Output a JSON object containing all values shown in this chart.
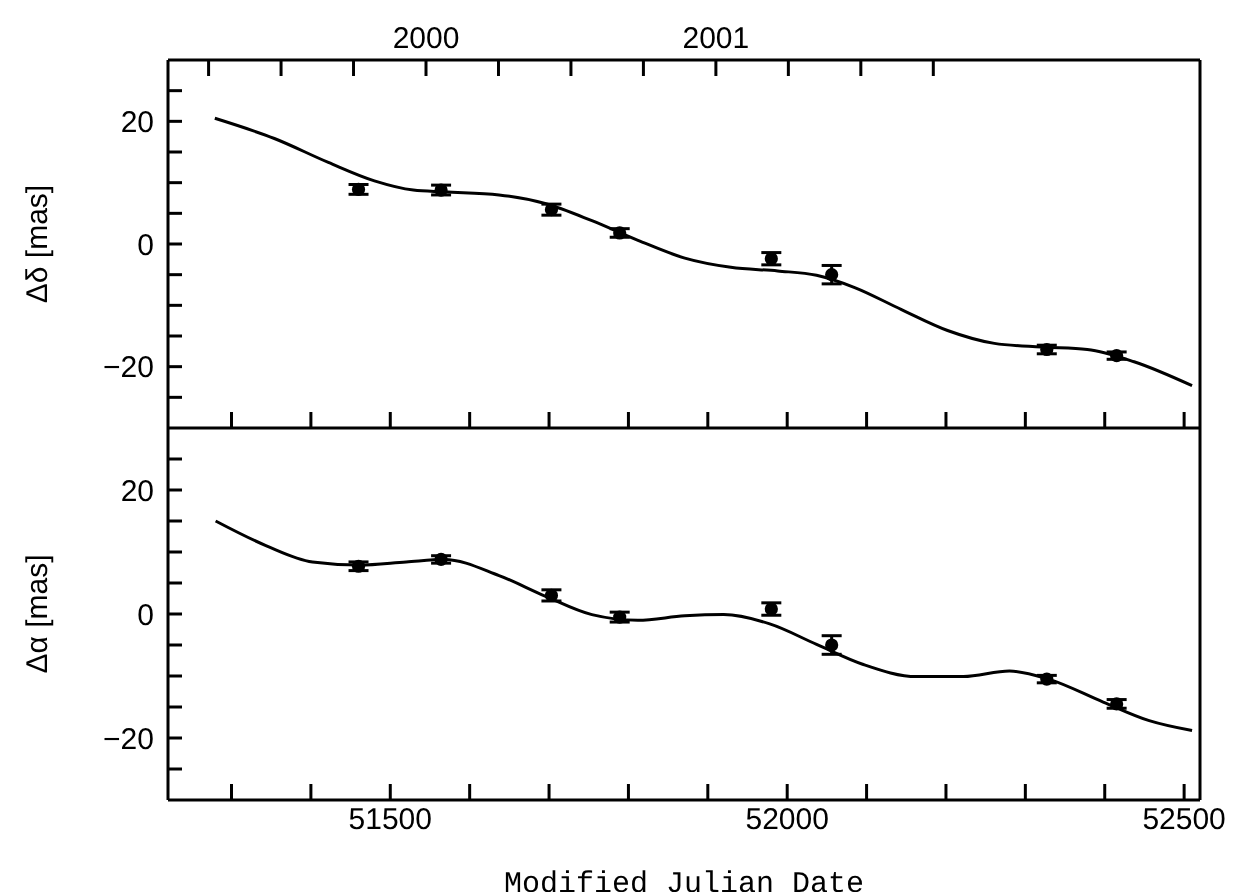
{
  "chart_data": [
    {
      "type": "scatter",
      "ylabel": "Δδ [mas]",
      "xlim": [
        51220,
        52520
      ],
      "ylim": [
        -30,
        30
      ],
      "tick_labels": "y",
      "xticks": [
        {
          "value": 51300,
          "label": null
        },
        {
          "value": 51400,
          "label": null
        },
        {
          "value": 51500,
          "label": null
        },
        {
          "value": 51600,
          "label": null
        },
        {
          "value": 51700,
          "label": null
        },
        {
          "value": 51800,
          "label": null
        },
        {
          "value": 51900,
          "label": null
        },
        {
          "value": 52000,
          "label": null
        },
        {
          "value": 52100,
          "label": null
        },
        {
          "value": 52200,
          "label": null
        },
        {
          "value": 52300,
          "label": null
        },
        {
          "value": 52400,
          "label": null
        },
        {
          "value": 52500,
          "label": null
        }
      ],
      "yticks": [
        {
          "value": -25,
          "label": null
        },
        -20,
        {
          "value": -15,
          "label": null
        },
        {
          "value": -10,
          "label": null
        },
        {
          "value": -5,
          "label": null
        },
        0,
        {
          "value": 5,
          "label": null
        },
        {
          "value": 10,
          "label": null
        },
        {
          "value": 15,
          "label": null
        },
        20,
        {
          "value": 25,
          "label": null
        }
      ],
      "x2lim": [
        1999.11,
        2002.67
      ],
      "x2ticks": [
        {
          "value": 1999.25,
          "label": null
        },
        {
          "value": 1999.5,
          "label": null
        },
        {
          "value": 1999.75,
          "label": null
        },
        2000,
        {
          "value": 2000.25,
          "label": null
        },
        {
          "value": 2000.5,
          "label": null
        },
        {
          "value": 2000.75,
          "label": null
        },
        2001,
        {
          "value": 2001.25,
          "label": null
        },
        {
          "value": 2001.5,
          "label": null
        },
        {
          "value": 2001.75,
          "label": null
        }
      ],
      "series": [
        {
          "type": "scatter",
          "marker": "circle",
          "color": "#000000",
          "x": [
            51460,
            51564,
            51703,
            51789,
            51980,
            52056,
            52327,
            52415
          ],
          "values": [
            8.9,
            8.8,
            5.6,
            1.8,
            -2.4,
            -5.0,
            -17.2,
            -18.2
          ],
          "errors": [
            0.8,
            0.8,
            0.9,
            0.7,
            1.0,
            1.5,
            0.7,
            0.6
          ]
        },
        {
          "type": "line",
          "color": "#000000",
          "x": [
            51279,
            51354,
            51422,
            51480,
            51529,
            51568,
            51637,
            51695,
            51754,
            51812,
            51871,
            51929,
            51988,
            52037,
            52085,
            52144,
            52202,
            52261,
            52320,
            52378,
            52437,
            52510
          ],
          "values": [
            20.5,
            17.2,
            13.3,
            10.3,
            8.8,
            8.5,
            8.0,
            6.6,
            3.8,
            0.6,
            -2.3,
            -3.8,
            -4.4,
            -5.1,
            -7.1,
            -10.7,
            -14.1,
            -16.2,
            -16.8,
            -17.2,
            -19.2,
            -23.1
          ]
        }
      ]
    },
    {
      "type": "scatter",
      "ylabel": "Δα [mas]",
      "xlabel": "Modified Julian Date",
      "xlim": [
        51220,
        52520
      ],
      "ylim": [
        -30,
        30
      ],
      "xticks": [
        {
          "value": 51300,
          "label": null
        },
        {
          "value": 51400,
          "label": null
        },
        51500,
        {
          "value": 51600,
          "label": null
        },
        {
          "value": 51700,
          "label": null
        },
        {
          "value": 51800,
          "label": null
        },
        {
          "value": 51900,
          "label": null
        },
        52000,
        {
          "value": 52100,
          "label": null
        },
        {
          "value": 52200,
          "label": null
        },
        {
          "value": 52300,
          "label": null
        },
        {
          "value": 52400,
          "label": null
        },
        52500
      ],
      "yticks": [
        {
          "value": -25,
          "label": null
        },
        -20,
        {
          "value": -15,
          "label": null
        },
        {
          "value": -10,
          "label": null
        },
        {
          "value": -5,
          "label": null
        },
        0,
        {
          "value": 5,
          "label": null
        },
        {
          "value": 10,
          "label": null
        },
        {
          "value": 15,
          "label": null
        },
        20,
        {
          "value": 25,
          "label": null
        }
      ],
      "series": [
        {
          "type": "scatter",
          "marker": "circle",
          "color": "#000000",
          "x": [
            51460,
            51564,
            51703,
            51789,
            51980,
            52056,
            52327,
            52415
          ],
          "values": [
            7.7,
            8.8,
            3.0,
            -0.5,
            0.8,
            -5.0,
            -10.5,
            -14.5
          ],
          "errors": [
            0.7,
            0.6,
            0.9,
            0.8,
            1.0,
            1.5,
            0.6,
            0.7
          ]
        },
        {
          "type": "line",
          "color": "#000000",
          "x": [
            51280,
            51344,
            51402,
            51461,
            51520,
            51568,
            51637,
            51695,
            51754,
            51812,
            51871,
            51920,
            51978,
            52037,
            52095,
            52163,
            52222,
            52280,
            52329,
            52398,
            52456,
            52510
          ],
          "values": [
            15.0,
            11.0,
            8.4,
            7.9,
            8.4,
            8.8,
            6.2,
            2.9,
            -0.1,
            -1.0,
            -0.3,
            -0.1,
            -1.6,
            -4.9,
            -8.1,
            -10.1,
            -10.1,
            -9.2,
            -10.5,
            -14.2,
            -17.2,
            -18.8
          ]
        }
      ]
    }
  ]
}
